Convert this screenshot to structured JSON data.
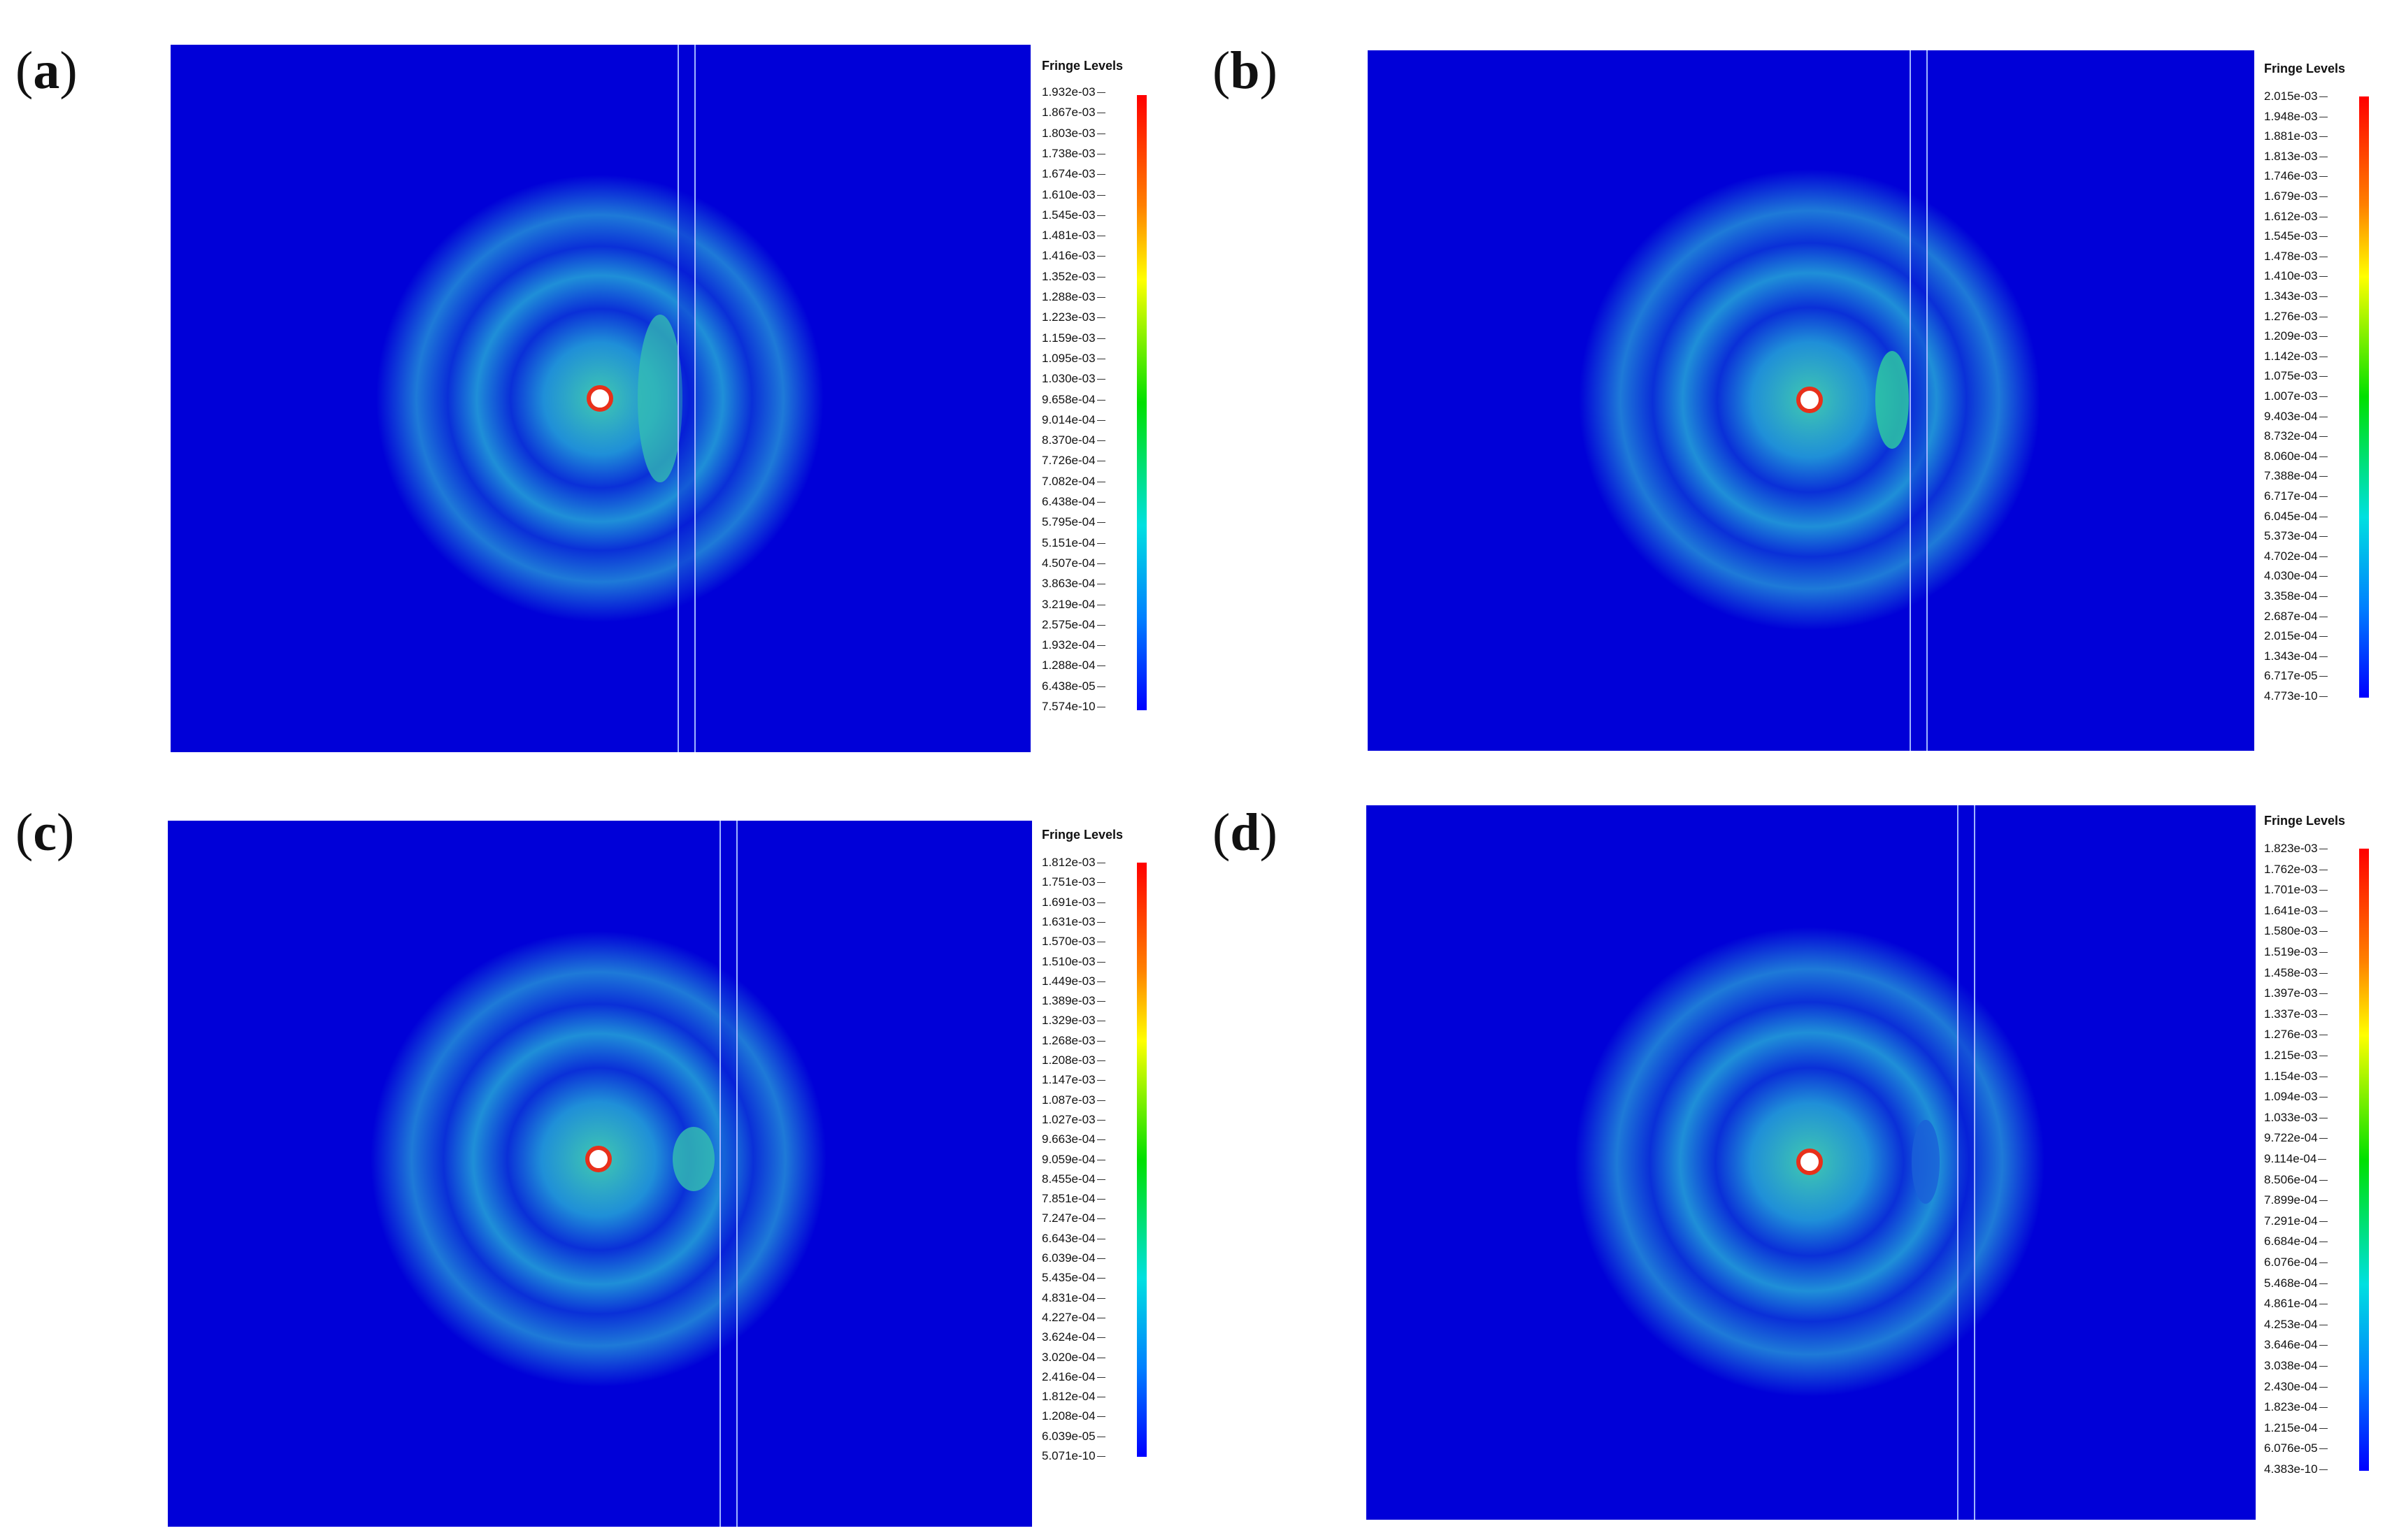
{
  "figure": {
    "panels": [
      {
        "label": "a",
        "legend_title": "Fringe Levels",
        "levels": [
          "1.932e-03",
          "1.867e-03",
          "1.803e-03",
          "1.738e-03",
          "1.674e-03",
          "1.610e-03",
          "1.545e-03",
          "1.481e-03",
          "1.416e-03",
          "1.352e-03",
          "1.288e-03",
          "1.223e-03",
          "1.159e-03",
          "1.095e-03",
          "1.030e-03",
          "9.658e-04",
          "9.014e-04",
          "8.370e-04",
          "7.726e-04",
          "7.082e-04",
          "6.438e-04",
          "5.795e-04",
          "5.151e-04",
          "4.507e-04",
          "3.863e-04",
          "3.219e-04",
          "2.575e-04",
          "1.932e-04",
          "1.288e-04",
          "6.438e-05",
          "7.574e-10"
        ]
      },
      {
        "label": "b",
        "legend_title": "Fringe Levels",
        "levels": [
          "2.015e-03",
          "1.948e-03",
          "1.881e-03",
          "1.813e-03",
          "1.746e-03",
          "1.679e-03",
          "1.612e-03",
          "1.545e-03",
          "1.478e-03",
          "1.410e-03",
          "1.343e-03",
          "1.276e-03",
          "1.209e-03",
          "1.142e-03",
          "1.075e-03",
          "1.007e-03",
          "9.403e-04",
          "8.732e-04",
          "8.060e-04",
          "7.388e-04",
          "6.717e-04",
          "6.045e-04",
          "5.373e-04",
          "4.702e-04",
          "4.030e-04",
          "3.358e-04",
          "2.687e-04",
          "2.015e-04",
          "1.343e-04",
          "6.717e-05",
          "4.773e-10"
        ]
      },
      {
        "label": "c",
        "legend_title": "Fringe Levels",
        "levels": [
          "1.812e-03",
          "1.751e-03",
          "1.691e-03",
          "1.631e-03",
          "1.570e-03",
          "1.510e-03",
          "1.449e-03",
          "1.389e-03",
          "1.329e-03",
          "1.268e-03",
          "1.208e-03",
          "1.147e-03",
          "1.087e-03",
          "1.027e-03",
          "9.663e-04",
          "9.059e-04",
          "8.455e-04",
          "7.851e-04",
          "7.247e-04",
          "6.643e-04",
          "6.039e-04",
          "5.435e-04",
          "4.831e-04",
          "4.227e-04",
          "3.624e-04",
          "3.020e-04",
          "2.416e-04",
          "1.812e-04",
          "1.208e-04",
          "6.039e-05",
          "5.071e-10"
        ]
      },
      {
        "label": "d",
        "legend_title": "Fringe Levels",
        "levels": [
          "1.823e-03",
          "1.762e-03",
          "1.701e-03",
          "1.641e-03",
          "1.580e-03",
          "1.519e-03",
          "1.458e-03",
          "1.397e-03",
          "1.337e-03",
          "1.276e-03",
          "1.215e-03",
          "1.154e-03",
          "1.094e-03",
          "1.033e-03",
          "9.722e-04",
          "9.114e-04",
          "8.506e-04",
          "7.899e-04",
          "7.291e-04",
          "6.684e-04",
          "6.076e-04",
          "5.468e-04",
          "4.861e-04",
          "4.253e-04",
          "3.646e-04",
          "3.038e-04",
          "2.430e-04",
          "1.823e-04",
          "1.215e-04",
          "6.076e-05",
          "4.383e-10"
        ]
      }
    ],
    "colors": {
      "background": "#0000d8",
      "ring": "#1f8fd8",
      "ring_bright": "#2fb8c8",
      "source_fill": "#ffffff",
      "source_stroke": "#e8301a",
      "colorbar_top": "#ff0000",
      "colorbar_mid": "#00e000",
      "colorbar_bottom": "#0000ff"
    }
  }
}
